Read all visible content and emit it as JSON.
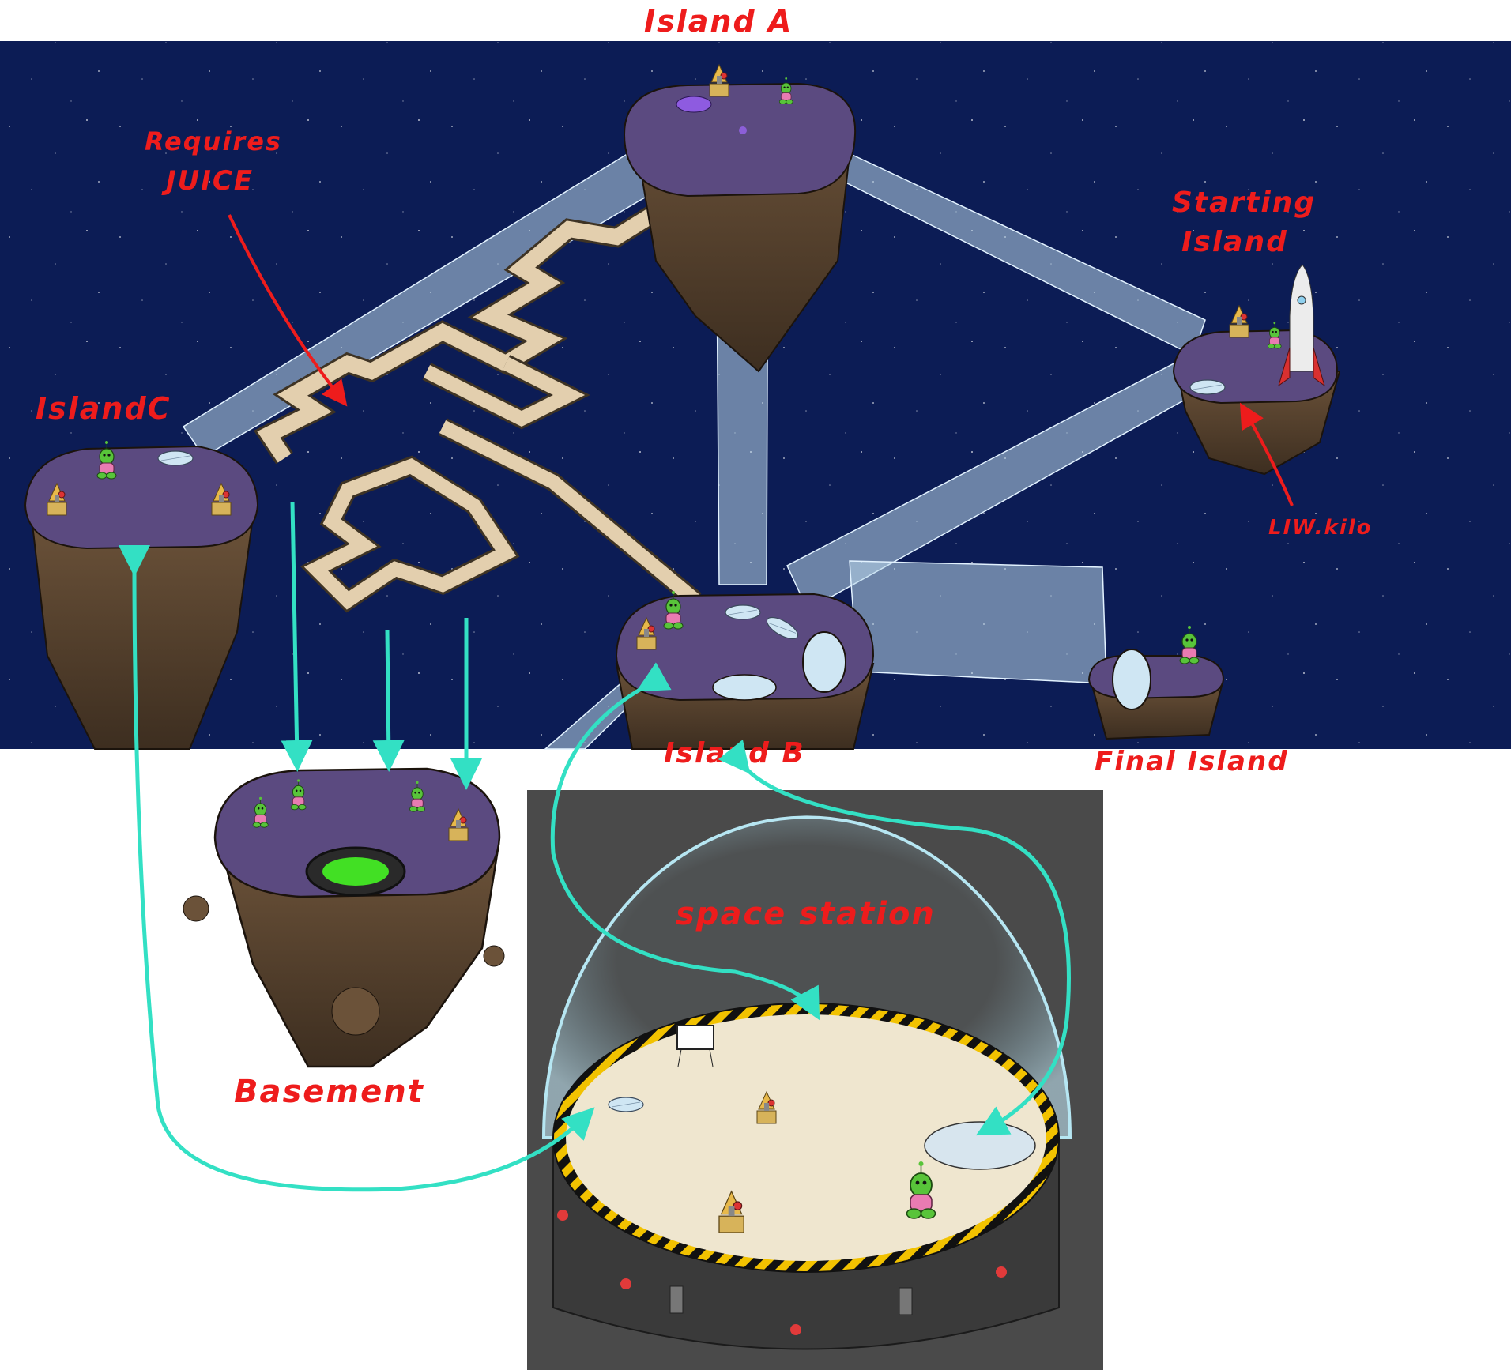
{
  "labels": {
    "island_a": "Island A",
    "requires": "Requires",
    "juice": "JUICE",
    "starting_1": "Starting",
    "starting_2": "Island",
    "island_c": "IslandC",
    "island_b": "Island B",
    "final_island": "Final Island",
    "liw_kilo": "LIW.kilo",
    "space_station": "space station",
    "basement": "Basement"
  },
  "colors": {
    "space": "#0c1c55",
    "island_top": "#5b4a80",
    "island_rock": "#54402e",
    "tube": "#b9d7ea",
    "maze": "#e3cfae",
    "arrow_cyan": "#33e0c4",
    "label_red": "#ee1c1c",
    "station_bg": "#4a4a4a",
    "station_floor": "#efe6cf",
    "hazard_yellow": "#f2c200"
  },
  "icons": [
    "alien-character-icon",
    "satellite-dish-icon",
    "rocket-icon",
    "portal-icon",
    "trampoline-icon",
    "whiteboard-icon"
  ]
}
